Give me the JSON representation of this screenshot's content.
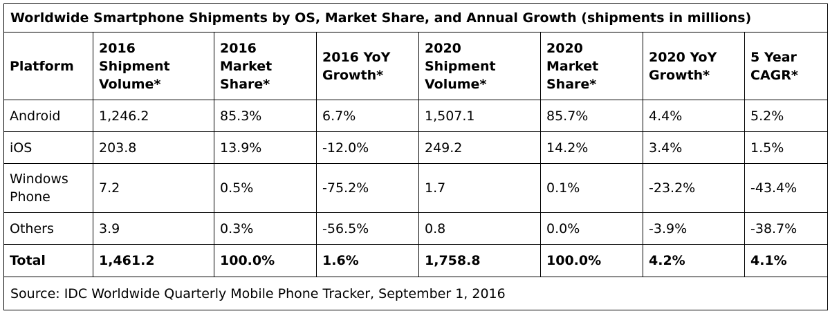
{
  "title": "Worldwide Smartphone Shipments by OS, Market Share, and Annual Growth (shipments in millions)",
  "columns": [
    [
      "Platform"
    ],
    [
      "2016",
      "Shipment",
      "Volume*"
    ],
    [
      "2016",
      "Market",
      "Share*"
    ],
    [
      "2016 YoY",
      "Growth*"
    ],
    [
      "2020",
      "Shipment",
      "Volume*"
    ],
    [
      "2020",
      "Market",
      "Share*"
    ],
    [
      "2020 YoY",
      "Growth*"
    ],
    [
      "5 Year",
      "CAGR*"
    ]
  ],
  "rows": [
    {
      "platform": [
        "Android"
      ],
      "cells": [
        "1,246.2",
        "85.3%",
        "6.7%",
        "1,507.1",
        "85.7%",
        "4.4%",
        "5.2%"
      ]
    },
    {
      "platform": [
        "iOS"
      ],
      "cells": [
        "203.8",
        "13.9%",
        "-12.0%",
        "249.2",
        "14.2%",
        "3.4%",
        "1.5%"
      ]
    },
    {
      "platform": [
        "Windows",
        "Phone"
      ],
      "cells": [
        "7.2",
        "0.5%",
        "-75.2%",
        "1.7",
        "0.1%",
        "-23.2%",
        "-43.4%"
      ]
    },
    {
      "platform": [
        "Others"
      ],
      "cells": [
        "3.9",
        "0.3%",
        "-56.5%",
        "0.8",
        "0.0%",
        "-3.9%",
        "-38.7%"
      ]
    }
  ],
  "total": {
    "label": "Total",
    "cells": [
      "1,461.2",
      "100.0%",
      "1.6%",
      "1,758.8",
      "100.0%",
      "4.2%",
      "4.1%"
    ]
  },
  "source": "Source: IDC Worldwide Quarterly Mobile Phone Tracker, September 1, 2016"
}
